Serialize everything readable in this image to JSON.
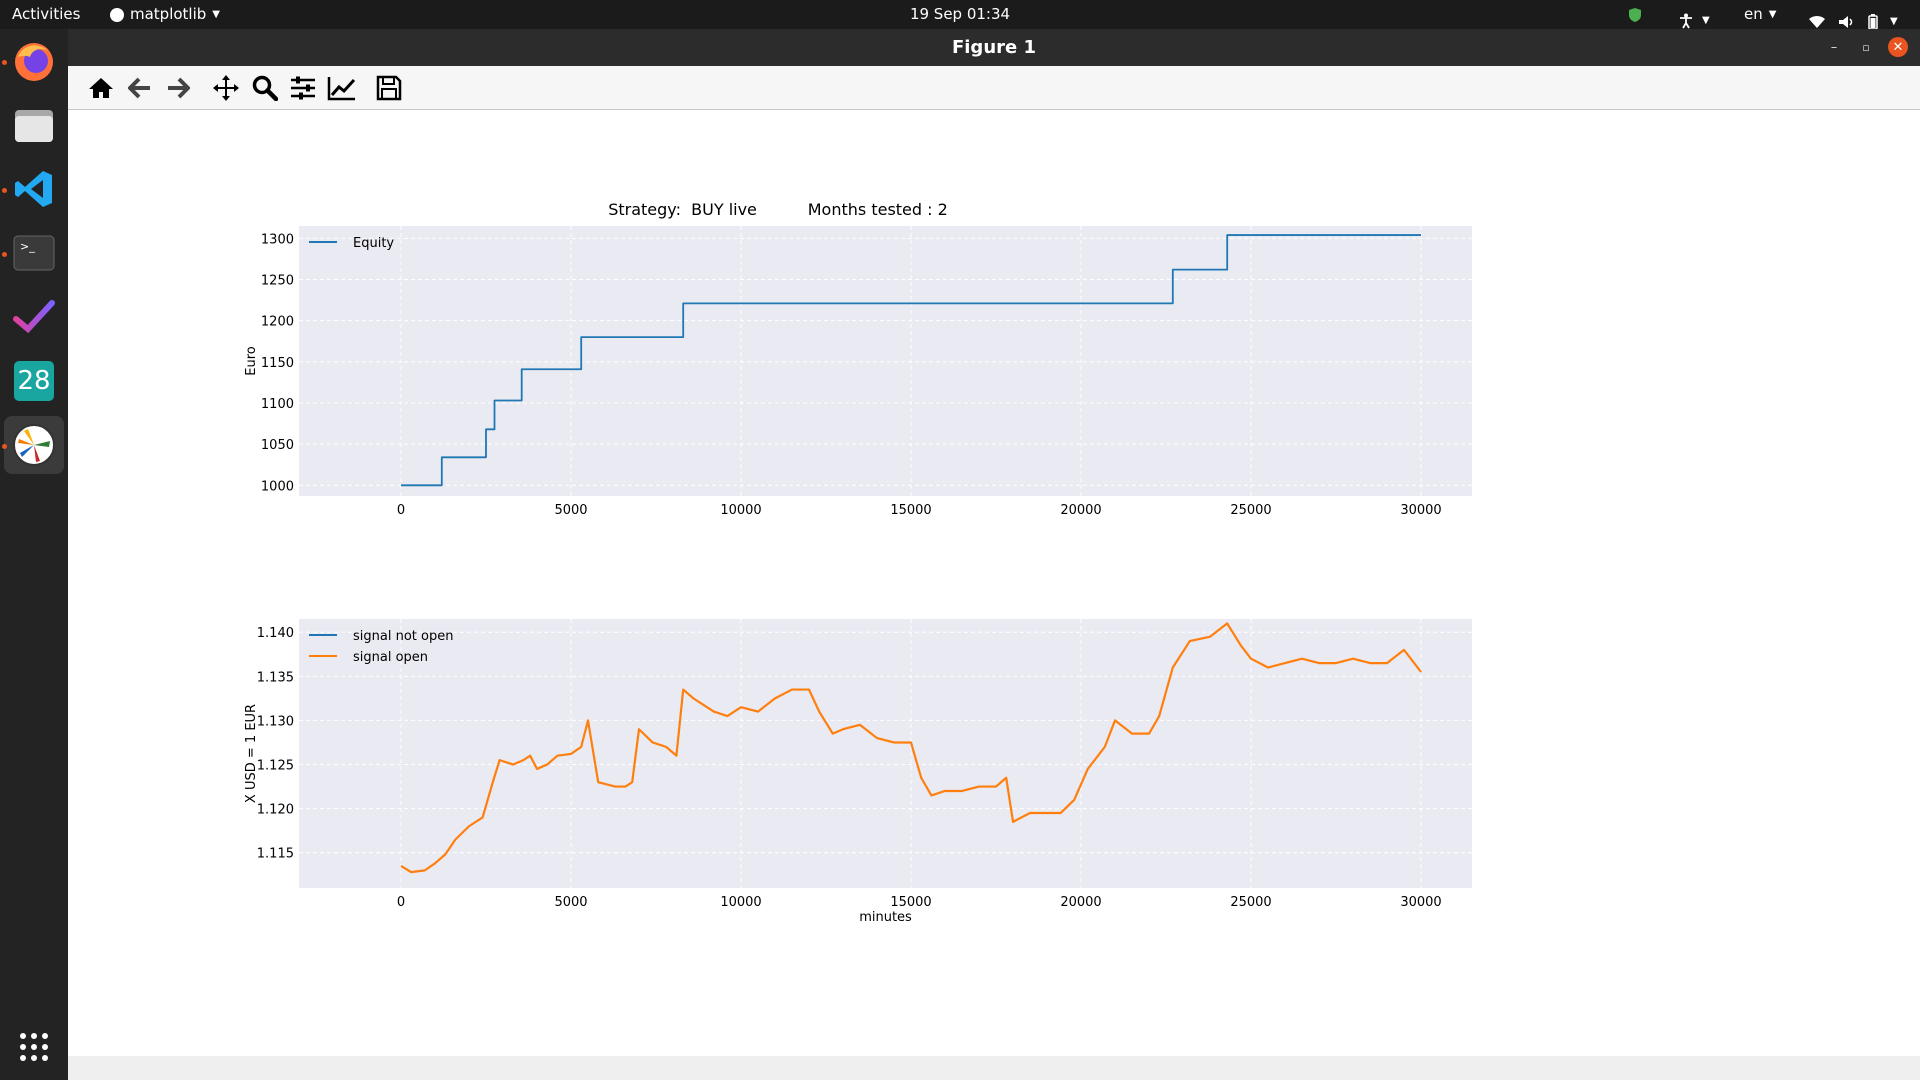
{
  "topbar": {
    "activities": "Activities",
    "app_menu": "matplotlib",
    "clock": "19 Sep  01:34",
    "lang": "en"
  },
  "dock": {
    "items": [
      "firefox-icon",
      "files-icon",
      "vscode-icon",
      "terminal-icon",
      "tasks-icon",
      "calendar-icon",
      "matplotlib-icon"
    ],
    "calendar_day": "28"
  },
  "window": {
    "title": "Figure 1"
  },
  "toolbar": {
    "buttons": [
      "home-icon",
      "back-icon",
      "forward-icon",
      "pan-icon",
      "zoom-icon",
      "configure-subplots-icon",
      "edit-axis-icon",
      "save-icon"
    ]
  },
  "figure": {
    "suptitle": "Strategy:  BUY live          Months tested : 2"
  },
  "chart_data": [
    {
      "type": "line",
      "ylabel": "Euro",
      "xlabel": "",
      "xlim": [
        -3000,
        31500
      ],
      "ylim": [
        987,
        1315
      ],
      "xticks": [
        0,
        5000,
        10000,
        15000,
        20000,
        25000,
        30000
      ],
      "yticks": [
        1000,
        1050,
        1100,
        1150,
        1200,
        1250,
        1300
      ],
      "grid": true,
      "legend": "top-left",
      "series": [
        {
          "name": "Equity",
          "color": "#1f77b4",
          "step": true,
          "x": [
            0,
            1200,
            2500,
            2750,
            3550,
            5300,
            8300,
            22700,
            24300,
            30000
          ],
          "y": [
            1000,
            1034,
            1068,
            1103,
            1141,
            1180,
            1221,
            1262,
            1304,
            1304
          ]
        }
      ]
    },
    {
      "type": "line",
      "ylabel": "X USD = 1 EUR",
      "xlabel": "minutes",
      "xlim": [
        -3000,
        31500
      ],
      "ylim": [
        1.111,
        1.1415
      ],
      "xticks": [
        0,
        5000,
        10000,
        15000,
        20000,
        25000,
        30000
      ],
      "yticks": [
        1.115,
        1.12,
        1.125,
        1.13,
        1.135,
        1.14
      ],
      "grid": true,
      "legend": "top-left",
      "series": [
        {
          "name": "signal not open",
          "color": "#1f77b4",
          "x": [],
          "y": []
        },
        {
          "name": "signal open",
          "color": "#ff7f0e",
          "x": [
            0,
            300,
            700,
            1000,
            1300,
            1600,
            2000,
            2400,
            2700,
            2900,
            3300,
            3600,
            3800,
            4000,
            4300,
            4600,
            5000,
            5300,
            5500,
            5800,
            6300,
            6600,
            6800,
            7000,
            7400,
            7800,
            8100,
            8300,
            8600,
            9000,
            9200,
            9600,
            10000,
            10500,
            11000,
            11500,
            12000,
            12300,
            12700,
            13000,
            13500,
            14000,
            14500,
            15000,
            15300,
            15600,
            16000,
            16500,
            17000,
            17500,
            17800,
            18000,
            18500,
            19000,
            19400,
            19800,
            20200,
            20700,
            21000,
            21500,
            22000,
            22300,
            22700,
            23200,
            23800,
            24300,
            24700,
            25000,
            25500,
            26000,
            26500,
            27000,
            27500,
            28000,
            28500,
            29000,
            29500,
            30000
          ],
          "y": [
            1.1135,
            1.1128,
            1.113,
            1.1138,
            1.1148,
            1.1165,
            1.118,
            1.119,
            1.123,
            1.1255,
            1.125,
            1.1255,
            1.126,
            1.1245,
            1.125,
            1.126,
            1.1262,
            1.127,
            1.13,
            1.123,
            1.1225,
            1.1225,
            1.123,
            1.129,
            1.1275,
            1.127,
            1.126,
            1.1335,
            1.1325,
            1.1315,
            1.131,
            1.1305,
            1.1315,
            1.131,
            1.1325,
            1.1335,
            1.1335,
            1.131,
            1.1285,
            1.129,
            1.1295,
            1.128,
            1.1275,
            1.1275,
            1.1235,
            1.1215,
            1.122,
            1.122,
            1.1225,
            1.1225,
            1.1235,
            1.1185,
            1.1195,
            1.1195,
            1.1195,
            1.121,
            1.1245,
            1.127,
            1.13,
            1.1285,
            1.1285,
            1.1305,
            1.136,
            1.139,
            1.1395,
            1.141,
            1.1385,
            1.137,
            1.136,
            1.1365,
            1.137,
            1.1365,
            1.1365,
            1.137,
            1.1365,
            1.1365,
            1.138,
            1.1355
          ]
        }
      ]
    }
  ]
}
